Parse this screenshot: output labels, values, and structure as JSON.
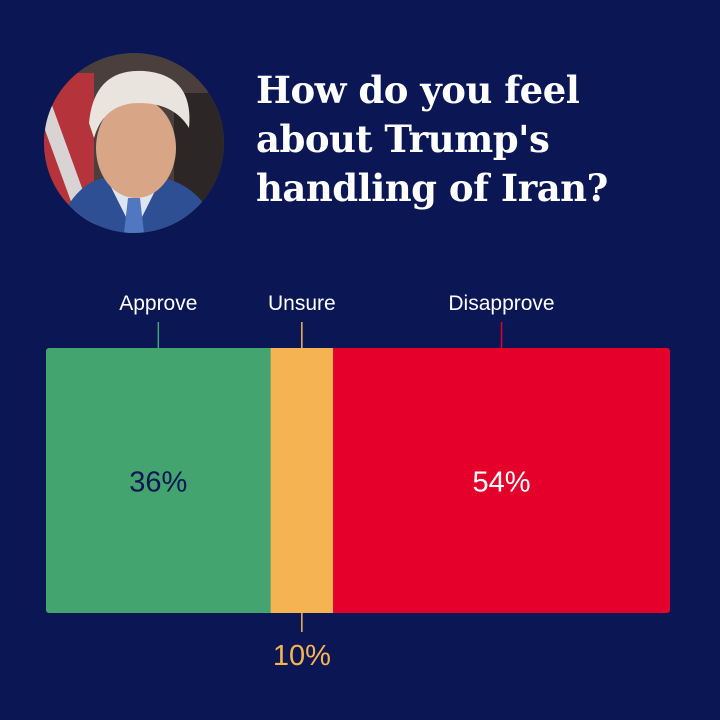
{
  "header": {
    "title": "How do you feel about Trump's handling of Iran?"
  },
  "portrait": {
    "alt": "Donald Trump"
  },
  "chart_data": {
    "type": "bar",
    "orientation": "horizontal-stacked",
    "title": "How do you feel about Trump's handling of Iran?",
    "categories": [
      "Approve",
      "Unsure",
      "Disapprove"
    ],
    "values": [
      36,
      10,
      54
    ],
    "value_labels": [
      "36%",
      "10%",
      "54%"
    ],
    "colors": [
      "#43a46f",
      "#f5b451",
      "#e4002b"
    ],
    "label_colors": [
      "#0b1655",
      "#f5b451",
      "#ffffff"
    ],
    "xlim": [
      0,
      100
    ]
  }
}
